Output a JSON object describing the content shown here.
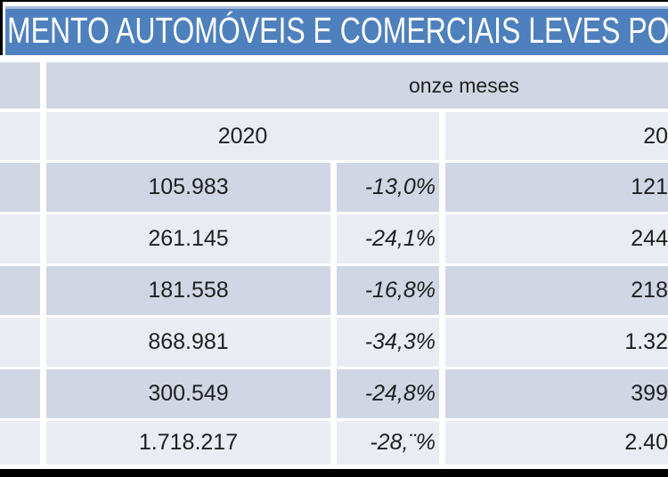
{
  "title_bar": {
    "text": "MENTO AUTOMÓVEIS E COMERCIAIS LEVES PO"
  },
  "chart_data": {
    "type": "table",
    "title": "MENTO AUTOMÓVEIS E COMERCIAIS LEVES PO",
    "column_group_header": "onze meses",
    "col_headers": {
      "left_year": "2020",
      "right_year_partial": "20"
    },
    "rows": [
      {
        "value_2020": "105.983",
        "pct_change": "-13,0%",
        "right_value_partial": "121"
      },
      {
        "value_2020": "261.145",
        "pct_change": "-24,1%",
        "right_value_partial": "244"
      },
      {
        "value_2020": "181.558",
        "pct_change": "-16,8%",
        "right_value_partial": "218"
      },
      {
        "value_2020": "868.981",
        "pct_change": "-34,3%",
        "right_value_partial": "1.32"
      },
      {
        "value_2020": "300.549",
        "pct_change": "-24,8%",
        "right_value_partial": "399"
      },
      {
        "value_2020": "1.718.217",
        "pct_change": "-28,¨%",
        "right_value_partial": "2.40"
      }
    ]
  },
  "colors": {
    "title_bar_blue": "#4e80bd",
    "title_bar_top_highlight": "#a9bedb",
    "row_dark": "#d0d6e4",
    "row_light": "#e9ecf3",
    "gridline": "#ffffff",
    "frame_black": "#000000",
    "text": "#1f1f1f",
    "title_text": "#ffffff"
  }
}
